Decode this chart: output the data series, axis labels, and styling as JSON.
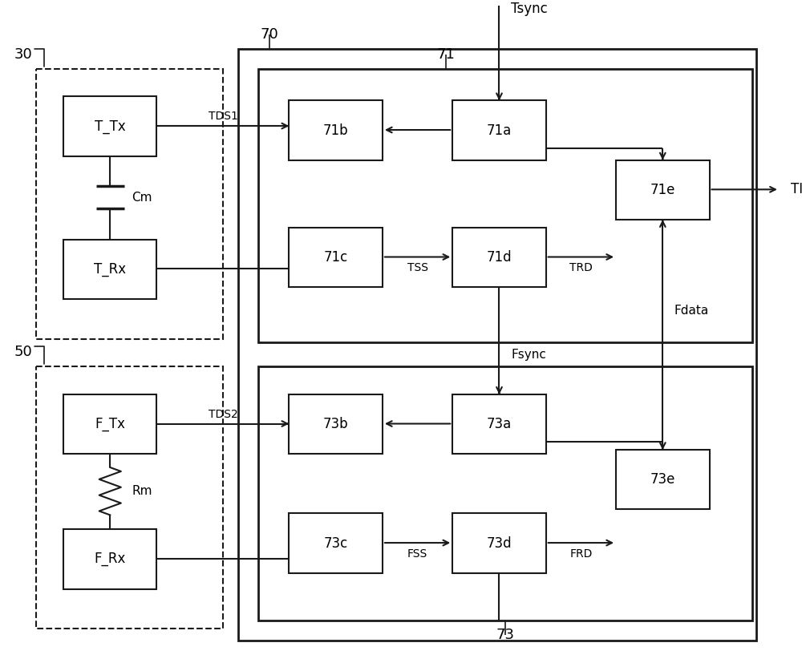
{
  "bg_color": "#ffffff",
  "line_color": "#1a1a1a",
  "fig_width": 10.0,
  "fig_height": 8.32,
  "labels": {
    "label_30": "30",
    "label_50": "50",
    "label_70": "70",
    "label_71": "71",
    "label_73": "73",
    "label_Tsync": "Tsync",
    "label_Fsync": "Fsync",
    "label_Fdata": "Fdata",
    "label_TDS1": "TDS1",
    "label_TDS2": "TDS2",
    "label_TSS": "TSS",
    "label_TRD": "TRD",
    "label_FSS": "FSS",
    "label_FRD": "FRD",
    "label_TI": "TI",
    "label_Cm": "Cm",
    "label_Rm": "Rm",
    "box_TTx": "T_Tx",
    "box_TRx": "T_Rx",
    "box_FTx": "F_Tx",
    "box_FRx": "F_Rx",
    "box_71a": "71a",
    "box_71b": "71b",
    "box_71c": "71c",
    "box_71d": "71d",
    "box_71e": "71e",
    "box_73a": "73a",
    "box_73b": "73b",
    "box_73c": "73c",
    "box_73d": "73d",
    "box_73e": "73e"
  }
}
